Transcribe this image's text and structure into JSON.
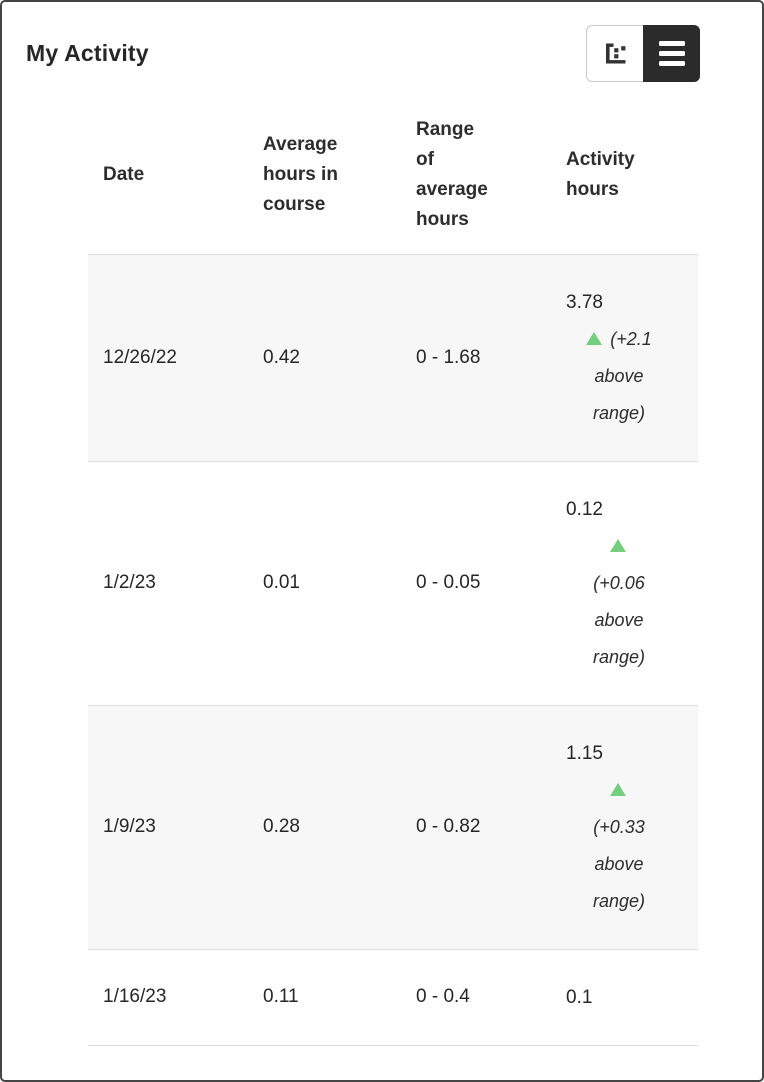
{
  "panel": {
    "title": "My Activity"
  },
  "toolbar": {
    "buttons": [
      {
        "name": "chart-view",
        "icon": "scatter-chart-icon",
        "active": false
      },
      {
        "name": "table-view",
        "icon": "list-icon",
        "active": true
      }
    ]
  },
  "colors": {
    "trend_green": "#74ce7e",
    "stripe_gray": "#f7f7f7",
    "divider_gray": "#dcdcdc",
    "text": "#262626",
    "toggle_active_bg": "#2b2b2b",
    "frame_border": "#454545"
  },
  "table": {
    "headers": [
      "Date",
      "Average hours in course",
      "Range of average hours",
      "Activity hours"
    ],
    "rows": [
      {
        "date": "12/26/22",
        "avg": "0.42",
        "range": "0 - 1.68",
        "activity": "3.78",
        "delta": "(+2.1 above range)",
        "trend": "up"
      },
      {
        "date": "1/2/23",
        "avg": "0.01",
        "range": "0 - 0.05",
        "activity": "0.12",
        "delta": "(+0.06 above range)",
        "trend": "up"
      },
      {
        "date": "1/9/23",
        "avg": "0.28",
        "range": "0 - 0.82",
        "activity": "1.15",
        "delta": "(+0.33 above range)",
        "trend": "up"
      },
      {
        "date": "1/16/23",
        "avg": "0.11",
        "range": "0 - 0.4",
        "activity": "0.1",
        "delta": null,
        "trend": null
      }
    ]
  },
  "chart_data": {
    "type": "table",
    "categories": [
      "12/26/22",
      "1/2/23",
      "1/9/23",
      "1/16/23"
    ],
    "series": [
      {
        "name": "Average hours in course",
        "values": [
          0.42,
          0.01,
          0.28,
          0.11
        ]
      },
      {
        "name": "Range of average hours (max)",
        "values": [
          1.68,
          0.05,
          0.82,
          0.4
        ]
      },
      {
        "name": "Activity hours",
        "values": [
          3.78,
          0.12,
          1.15,
          0.1
        ]
      }
    ],
    "title": "My Activity"
  }
}
